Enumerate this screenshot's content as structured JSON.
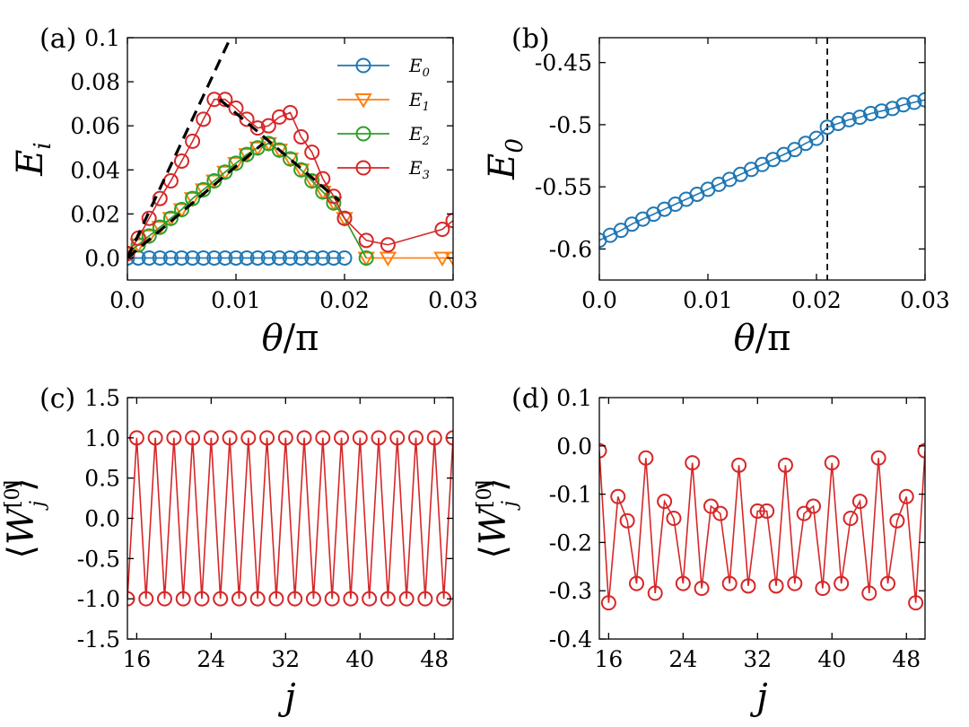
{
  "colors": {
    "E0": "#1f77b4",
    "E1": "#ff7f0e",
    "E2": "#2ca02c",
    "E3": "#d62728",
    "fit": "#000000"
  },
  "chart_data": [
    {
      "panel_label": "(a)",
      "type": "line",
      "xlabel_main": "θ",
      "xlabel_rest": "/π",
      "ylabel_main": "E",
      "ylabel_sub": "i",
      "xlim": [
        0,
        0.03
      ],
      "ylim": [
        -0.01,
        0.1
      ],
      "xticks": [
        0,
        0.01,
        0.02,
        0.03
      ],
      "xtick_labels": [
        "0.0",
        "0.01",
        "0.02",
        "0.03"
      ],
      "yticks": [
        0,
        0.02,
        0.04,
        0.06,
        0.08,
        0.1
      ],
      "ytick_labels": [
        "0.0",
        "0.02",
        "0.04",
        "0.06",
        "0.08",
        "0.1"
      ],
      "legend_position": "top-right",
      "series": [
        {
          "name": "E",
          "name_sub": "0",
          "color": "#1f77b4",
          "marker": "circle",
          "x": [
            0,
            0.001,
            0.002,
            0.003,
            0.004,
            0.005,
            0.006,
            0.007,
            0.008,
            0.009,
            0.01,
            0.011,
            0.012,
            0.013,
            0.014,
            0.015,
            0.016,
            0.017,
            0.018,
            0.019,
            0.02
          ],
          "y": [
            0,
            0,
            0,
            0,
            0,
            0,
            0,
            0,
            0,
            0,
            0,
            0,
            0,
            0,
            0,
            0,
            0,
            0,
            0,
            0,
            0
          ]
        },
        {
          "name": "E",
          "name_sub": "1",
          "color": "#ff7f0e",
          "marker": "triangle-down",
          "x": [
            0,
            0.001,
            0.002,
            0.003,
            0.004,
            0.005,
            0.006,
            0.007,
            0.008,
            0.009,
            0.01,
            0.011,
            0.012,
            0.013,
            0.014,
            0.015,
            0.016,
            0.017,
            0.018,
            0.019,
            0.02,
            0.022,
            0.024,
            0.029,
            0.03
          ],
          "y": [
            0.002,
            0.006,
            0.01,
            0.014,
            0.018,
            0.022,
            0.027,
            0.031,
            0.035,
            0.039,
            0.043,
            0.047,
            0.05,
            0.052,
            0.049,
            0.045,
            0.04,
            0.035,
            0.03,
            0.025,
            0.018,
            0.0,
            0.0,
            0.0,
            0.0
          ]
        },
        {
          "name": "E",
          "name_sub": "2",
          "color": "#2ca02c",
          "marker": "circle",
          "x": [
            0,
            0.001,
            0.002,
            0.003,
            0.004,
            0.005,
            0.006,
            0.007,
            0.008,
            0.009,
            0.01,
            0.011,
            0.012,
            0.013,
            0.014,
            0.015,
            0.016,
            0.017,
            0.018,
            0.019,
            0.02,
            0.022
          ],
          "y": [
            0.002,
            0.006,
            0.01,
            0.014,
            0.018,
            0.022,
            0.027,
            0.031,
            0.035,
            0.039,
            0.043,
            0.047,
            0.05,
            0.052,
            0.049,
            0.045,
            0.04,
            0.035,
            0.03,
            0.025,
            0.018,
            0.0
          ]
        },
        {
          "name": "E",
          "name_sub": "3",
          "color": "#d62728",
          "marker": "circle",
          "x": [
            0,
            0.001,
            0.002,
            0.003,
            0.004,
            0.005,
            0.006,
            0.007,
            0.008,
            0.009,
            0.01,
            0.011,
            0.012,
            0.013,
            0.014,
            0.015,
            0.016,
            0.017,
            0.018,
            0.019,
            0.02,
            0.022,
            0.024,
            0.029,
            0.03
          ],
          "y": [
            0.002,
            0.009,
            0.018,
            0.027,
            0.035,
            0.044,
            0.053,
            0.063,
            0.072,
            0.072,
            0.068,
            0.063,
            0.059,
            0.06,
            0.064,
            0.066,
            0.055,
            0.048,
            0.036,
            0.028,
            0.018,
            0.008,
            0.006,
            0.013,
            0.017
          ]
        }
      ],
      "fit_lines": [
        {
          "x": [
            0,
            0.0095
          ],
          "y": [
            0,
            0.1
          ]
        },
        {
          "x": [
            0,
            0.0125
          ],
          "y": [
            0,
            0.052
          ]
        },
        {
          "x": [
            0.0085,
            0.0195
          ],
          "y": [
            0.072,
            0.026
          ]
        }
      ]
    },
    {
      "panel_label": "(b)",
      "type": "line",
      "xlabel_main": "θ",
      "xlabel_rest": "/π",
      "ylabel_main": "E",
      "ylabel_sub": "0",
      "xlim": [
        0,
        0.03
      ],
      "ylim": [
        -0.625,
        -0.43
      ],
      "xticks": [
        0,
        0.01,
        0.02,
        0.03
      ],
      "xtick_labels": [
        "0.0",
        "0.01",
        "0.02",
        "0.03"
      ],
      "yticks": [
        -0.6,
        -0.55,
        -0.5,
        -0.45
      ],
      "ytick_labels": [
        "-0.6",
        "-0.55",
        "-0.5",
        "-0.45"
      ],
      "vline_x": 0.021,
      "series": [
        {
          "name": "",
          "color": "#1f77b4",
          "marker": "circle",
          "x": [
            0,
            0.001,
            0.002,
            0.003,
            0.004,
            0.005,
            0.006,
            0.007,
            0.008,
            0.009,
            0.01,
            0.011,
            0.012,
            0.013,
            0.014,
            0.015,
            0.016,
            0.017,
            0.018,
            0.019,
            0.02,
            0.021,
            0.022,
            0.023,
            0.024,
            0.025,
            0.026,
            0.027,
            0.028,
            0.029,
            0.03
          ],
          "y": [
            -0.593,
            -0.589,
            -0.585,
            -0.58,
            -0.576,
            -0.572,
            -0.568,
            -0.564,
            -0.56,
            -0.556,
            -0.552,
            -0.548,
            -0.544,
            -0.54,
            -0.536,
            -0.532,
            -0.528,
            -0.524,
            -0.52,
            -0.515,
            -0.511,
            -0.502,
            -0.499,
            -0.496,
            -0.494,
            -0.491,
            -0.489,
            -0.487,
            -0.484,
            -0.482,
            -0.48
          ]
        }
      ]
    },
    {
      "panel_label": "(c)",
      "type": "line",
      "xlabel_main": "j",
      "ylabel": "⟨W[0]j⟩",
      "xlim": [
        15,
        50
      ],
      "ylim": [
        -1.5,
        1.5
      ],
      "xticks": [
        16,
        24,
        32,
        40,
        48
      ],
      "xtick_labels": [
        "16",
        "24",
        "32",
        "40",
        "48"
      ],
      "yticks": [
        -1.5,
        -1.0,
        -0.5,
        0.0,
        0.5,
        1.0,
        1.5
      ],
      "ytick_labels": [
        "-1.5",
        "-1.0",
        "-0.5",
        "0.0",
        "0.5",
        "1.0",
        "1.5"
      ],
      "series": [
        {
          "name": "",
          "color": "#d62728",
          "marker": "circle",
          "x": [
            15,
            16,
            17,
            18,
            19,
            20,
            21,
            22,
            23,
            24,
            25,
            26,
            27,
            28,
            29,
            30,
            31,
            32,
            33,
            34,
            35,
            36,
            37,
            38,
            39,
            40,
            41,
            42,
            43,
            44,
            45,
            46,
            47,
            48,
            49,
            50
          ],
          "y": [
            -1,
            1,
            -1,
            1,
            -1,
            1,
            -1,
            1,
            -1,
            1,
            -1,
            1,
            -1,
            1,
            -1,
            1,
            -1,
            1,
            -1,
            1,
            -1,
            1,
            -1,
            1,
            -1,
            1,
            -1,
            1,
            -1,
            1,
            -1,
            1,
            -1,
            1,
            -1,
            1
          ]
        }
      ]
    },
    {
      "panel_label": "(d)",
      "type": "line",
      "xlabel_main": "j",
      "ylabel": "⟨W[0]j⟩",
      "xlim": [
        15,
        50
      ],
      "ylim": [
        -0.4,
        0.1
      ],
      "xticks": [
        16,
        24,
        32,
        40,
        48
      ],
      "xtick_labels": [
        "16",
        "24",
        "32",
        "40",
        "48"
      ],
      "yticks": [
        -0.4,
        -0.3,
        -0.2,
        -0.1,
        0.0,
        0.1
      ],
      "ytick_labels": [
        "-0.4",
        "-0.3",
        "-0.2",
        "-0.1",
        "0.0",
        "0.1"
      ],
      "series": [
        {
          "name": "",
          "color": "#d62728",
          "marker": "circle",
          "x": [
            15,
            16,
            17,
            18,
            19,
            20,
            21,
            22,
            23,
            24,
            25,
            26,
            27,
            28,
            29,
            30,
            31,
            32,
            33,
            34,
            35,
            36,
            37,
            38,
            39,
            40,
            41,
            42,
            43,
            44,
            45,
            46,
            47,
            48,
            49,
            50
          ],
          "y": [
            -0.01,
            -0.325,
            -0.105,
            -0.155,
            -0.285,
            -0.025,
            -0.305,
            -0.115,
            -0.15,
            -0.285,
            -0.035,
            -0.295,
            -0.125,
            -0.14,
            -0.285,
            -0.04,
            -0.29,
            -0.135,
            -0.135,
            -0.29,
            -0.04,
            -0.285,
            -0.14,
            -0.125,
            -0.295,
            -0.035,
            -0.285,
            -0.15,
            -0.115,
            -0.305,
            -0.025,
            -0.285,
            -0.155,
            -0.105,
            -0.325,
            -0.01
          ]
        }
      ]
    }
  ]
}
